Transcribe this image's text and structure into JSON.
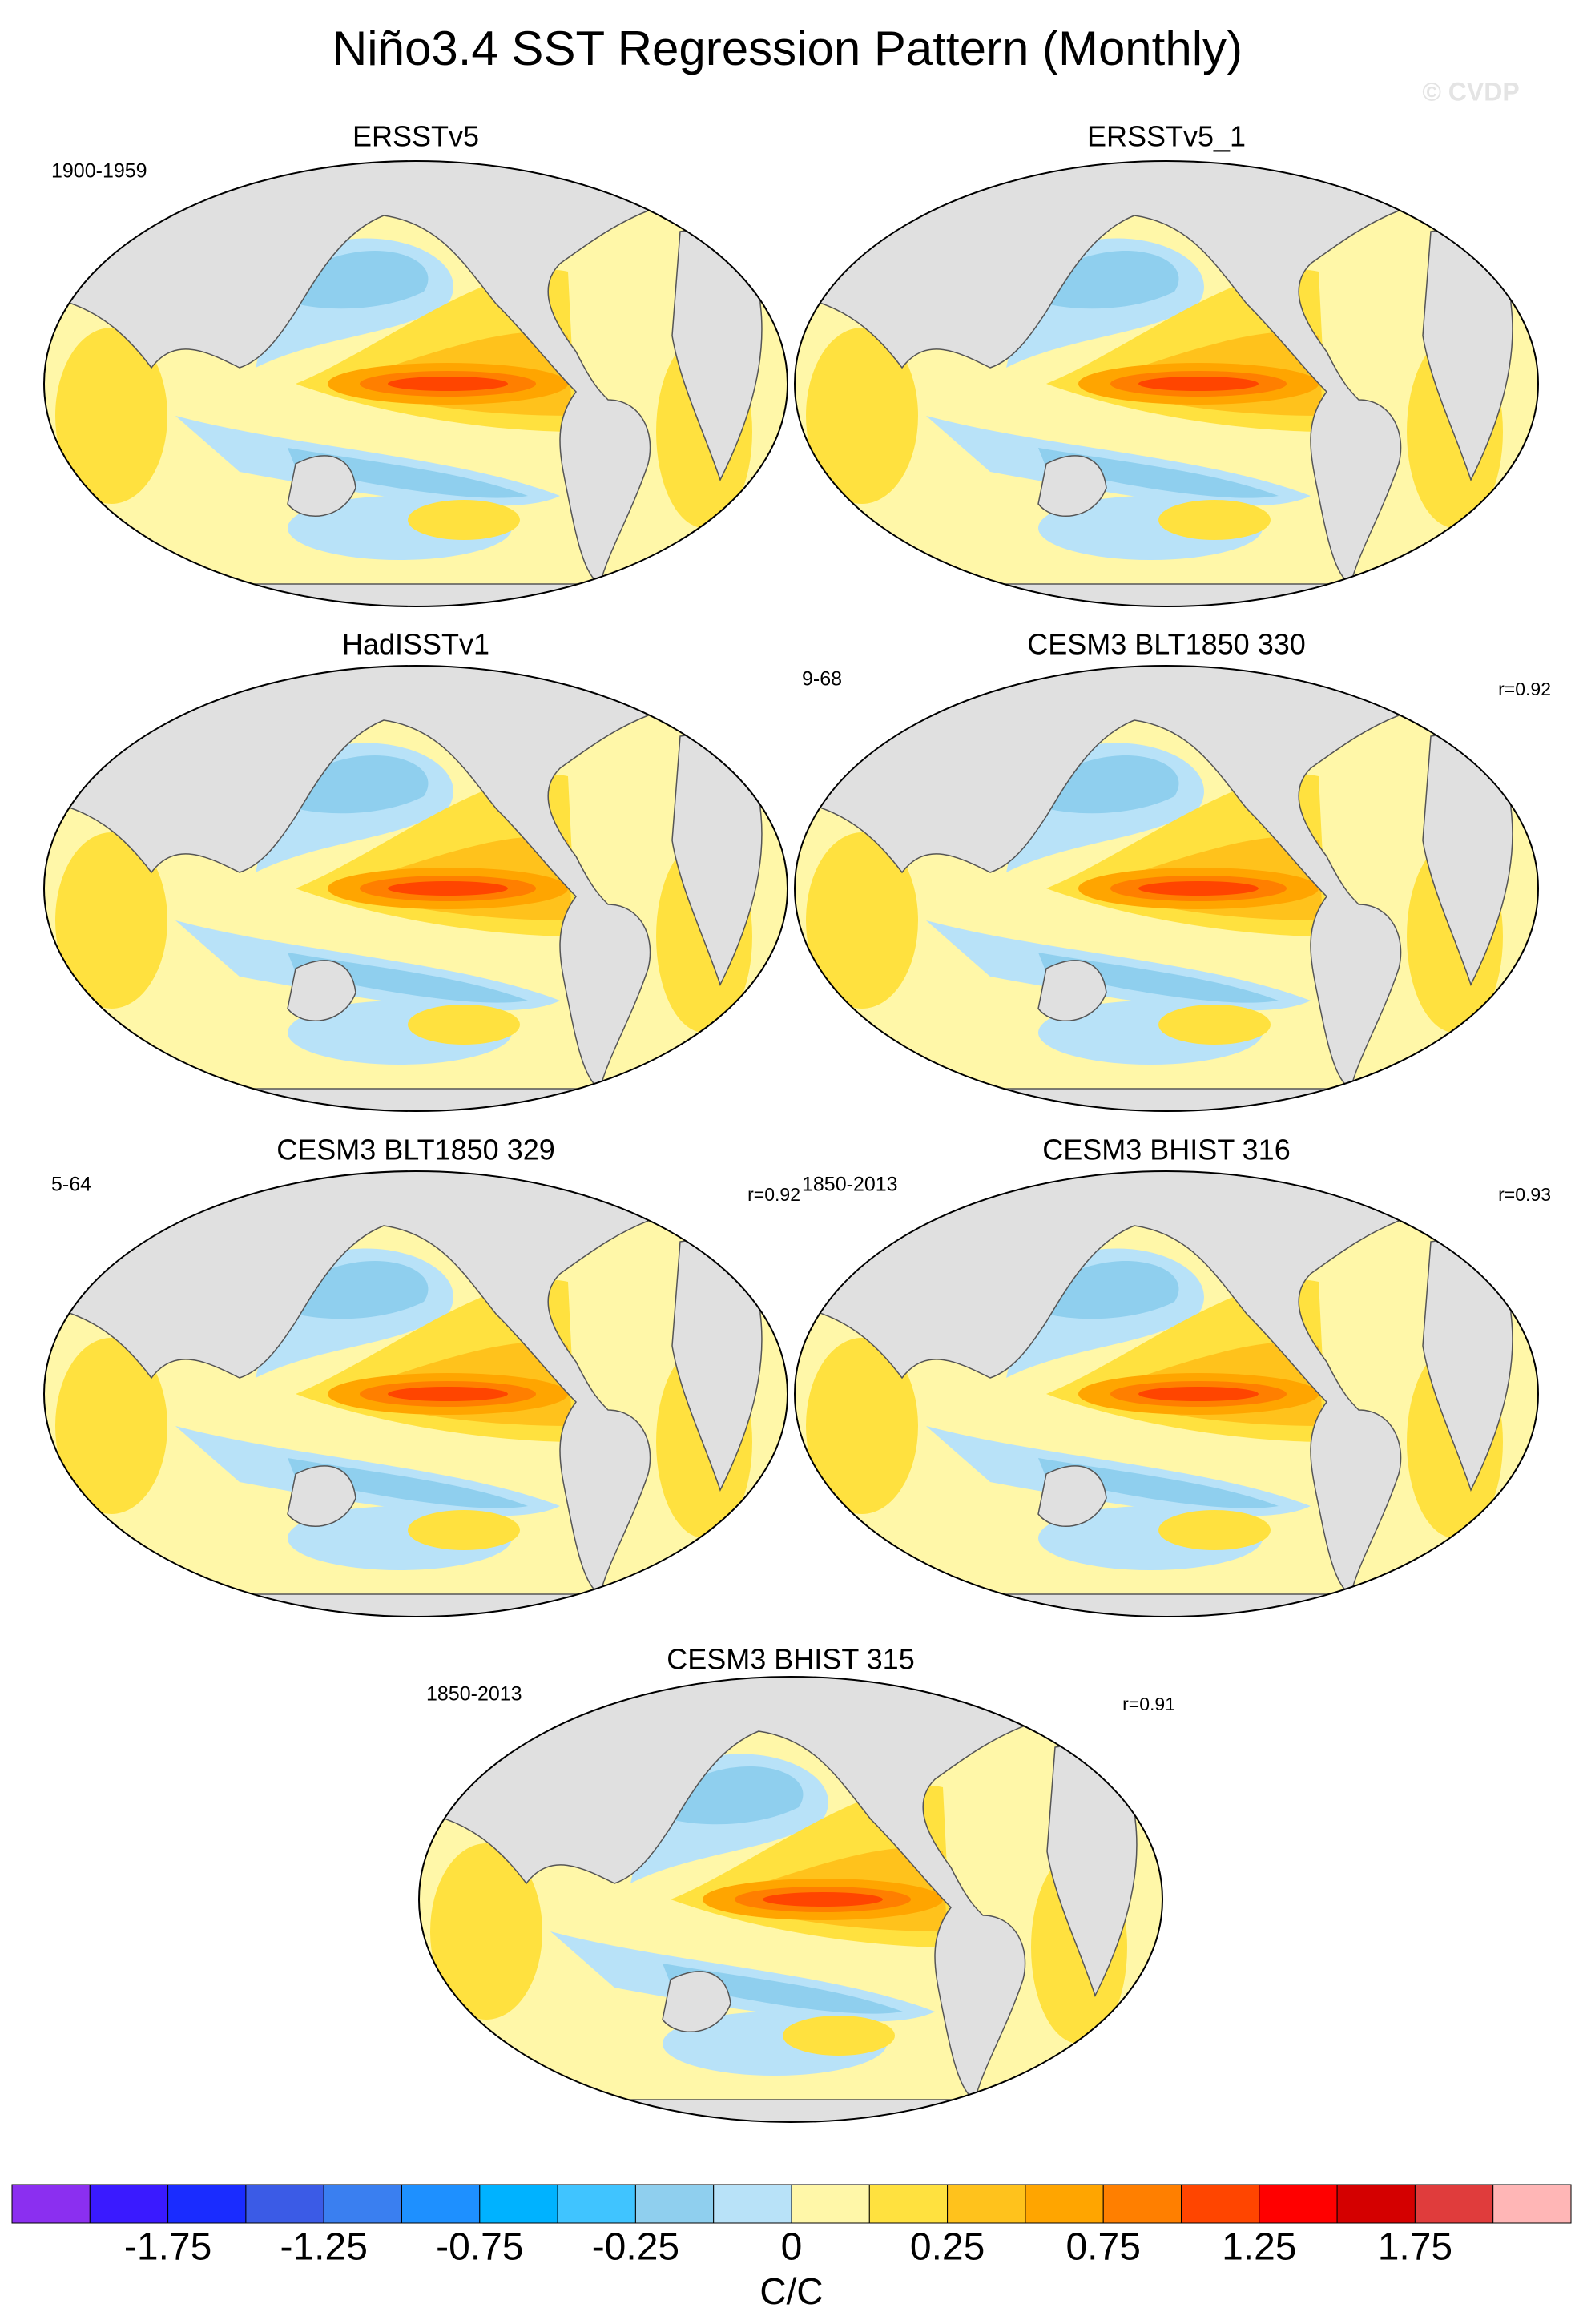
{
  "header": {
    "title": "Niño3.4 SST Regression Pattern (Monthly)",
    "watermark": "© CVDP"
  },
  "panels": [
    {
      "title": "ERSSTv5",
      "period": "1900-1959"
    },
    {
      "title": "ERSSTv5_1"
    },
    {
      "title": "HadISSTv1"
    },
    {
      "title": "CESM3 BLT1850 330",
      "period": "9-68",
      "r": "r=0.92"
    },
    {
      "title": "CESM3 BLT1850 329",
      "period": "5-64",
      "r": "r=0.92"
    },
    {
      "title": "CESM3 BHIST 316",
      "period": "1850-2013",
      "r": "r=0.93"
    },
    {
      "title": "CESM3 BHIST 315",
      "period": "1850-2013",
      "r": "r=0.91"
    }
  ],
  "colorbar": {
    "colors": [
      "#8b2ff0",
      "#3a1aff",
      "#1a2cff",
      "#3b5be6",
      "#3a7ff0",
      "#1e90ff",
      "#00b2ff",
      "#40c4ff",
      "#8fcfee",
      "#b8e2f8",
      "#fff7a8",
      "#ffe13f",
      "#ffc21c",
      "#ffa500",
      "#ff7f00",
      "#ff4500",
      "#ff0000",
      "#d40000",
      "#e03c3c",
      "#ffb6b6"
    ],
    "levels": [
      -2,
      -1.75,
      -1.5,
      -1.25,
      -1,
      -0.75,
      -0.5,
      -0.25,
      -0.1,
      0,
      0.1,
      0.25,
      0.5,
      0.75,
      1,
      1.25,
      1.5,
      1.75,
      2
    ],
    "ticks": [
      -1.75,
      -1.25,
      -0.75,
      -0.25,
      0,
      0.25,
      0.75,
      1.25,
      1.75
    ],
    "label": "C/C"
  }
}
